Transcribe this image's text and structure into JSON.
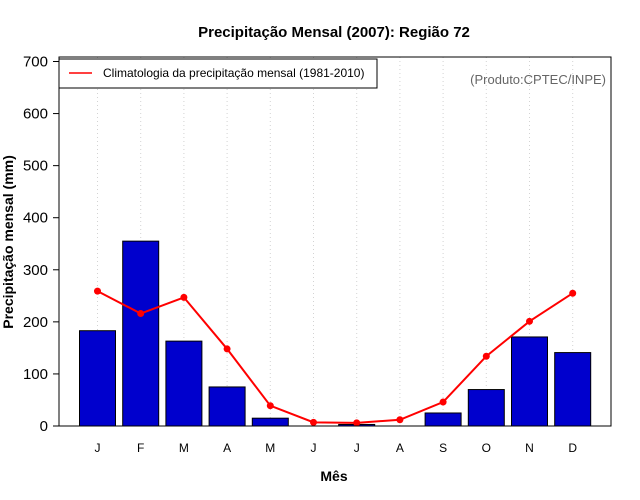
{
  "chart_data": {
    "type": "bar",
    "title": "Precipitação Mensal (2007): Região 72",
    "xlabel": "Mês",
    "ylabel": "Precipitação mensal (mm)",
    "ylim": [
      0,
      700
    ],
    "yticks": [
      0,
      100,
      200,
      300,
      400,
      500,
      600,
      700
    ],
    "categories": [
      "J",
      "F",
      "M",
      "A",
      "M",
      "J",
      "J",
      "A",
      "S",
      "O",
      "N",
      "D"
    ],
    "series": [
      {
        "name": "Precipitação mensal 2007",
        "type": "bar",
        "color": "#0000cd",
        "values": [
          183,
          355,
          163,
          75,
          15,
          0,
          3,
          0,
          25,
          70,
          171,
          141
        ]
      },
      {
        "name": "Climatologia da precipitação mensal (1981-2010)",
        "type": "line",
        "color": "#ff0000",
        "values": [
          259,
          216,
          247,
          148,
          39,
          7,
          6,
          12,
          46,
          134,
          201,
          255
        ]
      }
    ],
    "legend": {
      "label": "Climatologia da precipitação mensal (1981-2010)",
      "position": "top-left"
    },
    "source_label": "(Produto:CPTEC/INPE)",
    "grid": "vertical dotted"
  }
}
